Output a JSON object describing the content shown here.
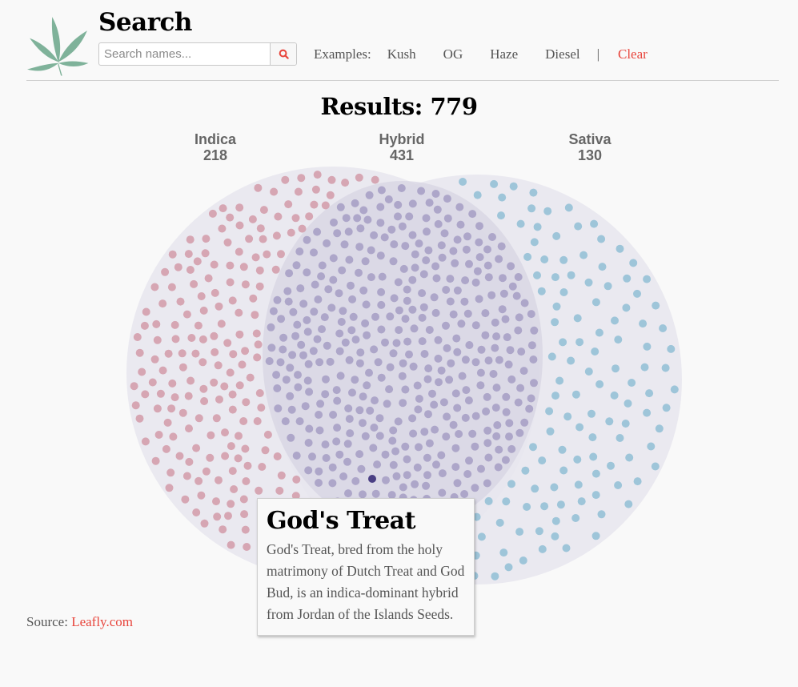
{
  "header": {
    "title": "Search",
    "logo_icon": "cannabis-leaf-icon",
    "logo_color": "#7fb29a",
    "search": {
      "placeholder": "Search names...",
      "value": "",
      "button_icon": "search-icon"
    },
    "examples_label": "Examples:",
    "examples": [
      "Kush",
      "OG",
      "Haze",
      "Diesel"
    ],
    "separator": "|",
    "clear_label": "Clear"
  },
  "results": {
    "label": "Results: 779",
    "total": 779
  },
  "groups": [
    {
      "name": "Indica",
      "count": "218"
    },
    {
      "name": "Hybrid",
      "count": "431"
    },
    {
      "name": "Sativa",
      "count": "130"
    }
  ],
  "tooltip": {
    "title": "God's Treat",
    "body": "God's Treat, bred from the holy matrimony of Dutch Treat and God Bud, is an indica-dominant hybrid from Jordan of the Islands Seeds."
  },
  "source": {
    "label": "Source:",
    "link": "Leafly.com"
  },
  "colors": {
    "accent": "#e8453c",
    "indica_dot": "#d6a6b3",
    "hybrid_dot": "#ada6c9",
    "sativa_dot": "#9ec5d9",
    "highlight_dot": "#4a3f84",
    "circle_fill": "#e8e6ee",
    "overlap_fill": "#dcd9e6"
  },
  "chart_data": {
    "type": "scatter",
    "title": "Results: 779",
    "subtype": "venn-dot-diagram",
    "categories": [
      "Indica",
      "Hybrid",
      "Sativa"
    ],
    "values": [
      218,
      431,
      130
    ],
    "legend": [
      "Indica 218",
      "Hybrid 431",
      "Sativa 130"
    ],
    "highlighted_point": {
      "name": "God's Treat",
      "category": "Hybrid"
    },
    "xlabel": "",
    "ylabel": "",
    "grid": false
  }
}
